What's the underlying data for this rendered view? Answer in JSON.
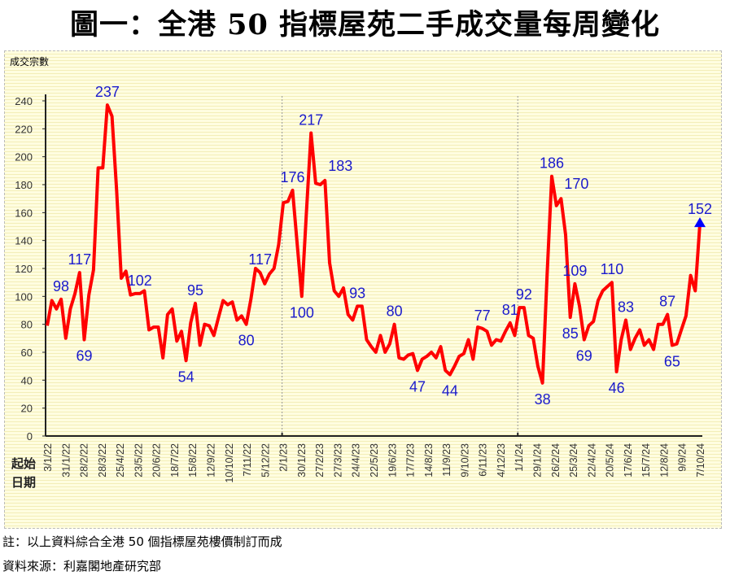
{
  "title": "圖一：全港 50 指標屋苑二手成交量每周變化",
  "notes": {
    "note1": "註：以上資料綜合全港 50 個指標屋苑樓價制訂而成",
    "note2": "資料來源：利嘉閣地產研究部"
  },
  "colors": {
    "line": "#ff0000",
    "label": "#1a1acc",
    "marker": "#0000ff"
  },
  "chart_data": {
    "type": "line",
    "title": "圖一：全港 50 指標屋苑二手成交量每周變化",
    "ylabel": "成交宗數",
    "xlabel": "起始日期",
    "xlabel_lines": [
      "起始",
      "日期"
    ],
    "ylim": [
      0,
      240
    ],
    "yticks": [
      0,
      20,
      40,
      60,
      80,
      100,
      120,
      140,
      160,
      180,
      200,
      220,
      240
    ],
    "grid": false,
    "xtick_labels": [
      "3/1/22",
      "31/1/22",
      "28/2/22",
      "28/3/22",
      "25/4/22",
      "23/5/22",
      "20/6/22",
      "18/7/22",
      "15/8/22",
      "12/9/22",
      "10/10/22",
      "7/11/22",
      "5/12/22",
      "2/1/23",
      "30/1/23",
      "27/2/23",
      "27/3/23",
      "24/4/23",
      "22/5/23",
      "19/6/23",
      "17/7/23",
      "14/8/23",
      "11/9/23",
      "9/10/23",
      "6/11/23",
      "4/12/23",
      "1/1/24",
      "29/1/24",
      "26/2/24",
      "25/3/24",
      "22/4/24",
      "20/5/24",
      "17/6/24",
      "15/7/24",
      "12/8/24",
      "9/9/24",
      "7/10/24"
    ],
    "year_separators": [
      "2/1/23",
      "1/1/24"
    ],
    "series": [
      {
        "name": "成交宗數",
        "values": [
          79,
          97,
          91,
          98,
          70,
          91,
          102,
          117,
          69,
          101,
          119,
          192,
          192,
          237,
          229,
          176,
          113,
          118,
          101,
          102,
          102,
          104,
          76,
          78,
          78,
          56,
          87,
          91,
          68,
          75,
          54,
          81,
          95,
          65,
          80,
          79,
          72,
          85,
          97,
          94,
          96,
          83,
          86,
          80,
          98,
          120,
          117,
          109,
          116,
          120,
          137,
          167,
          168,
          176,
          138,
          100,
          160,
          217,
          181,
          180,
          183,
          124,
          104,
          100,
          106,
          87,
          83,
          93,
          93,
          69,
          64,
          60,
          72,
          60,
          66,
          80,
          56,
          55,
          58,
          59,
          47,
          55,
          57,
          60,
          56,
          64,
          47,
          44,
          50,
          57,
          59,
          69,
          55,
          78,
          77,
          75,
          65,
          69,
          68,
          75,
          81,
          72,
          92,
          92,
          72,
          70,
          50,
          38,
          116,
          186,
          165,
          170,
          144,
          85,
          109,
          93,
          69,
          79,
          82,
          97,
          104,
          107,
          110,
          46,
          69,
          83,
          62,
          70,
          76,
          65,
          69,
          62,
          80,
          80,
          87,
          65,
          66,
          76,
          86,
          115,
          104,
          152
        ]
      }
    ],
    "annotations": [
      {
        "index": 3,
        "text": "98",
        "pos": "above"
      },
      {
        "index": 7,
        "text": "117",
        "pos": "above"
      },
      {
        "index": 8,
        "text": "69",
        "pos": "below"
      },
      {
        "index": 13,
        "text": "237",
        "pos": "above"
      },
      {
        "index": 20,
        "text": "102",
        "pos": "above"
      },
      {
        "index": 30,
        "text": "54",
        "pos": "below"
      },
      {
        "index": 32,
        "text": "95",
        "pos": "above"
      },
      {
        "index": 43,
        "text": "80",
        "pos": "below"
      },
      {
        "index": 46,
        "text": "117",
        "pos": "above"
      },
      {
        "index": 53,
        "text": "176",
        "pos": "above"
      },
      {
        "index": 55,
        "text": "100",
        "pos": "below"
      },
      {
        "index": 57,
        "text": "217",
        "pos": "above"
      },
      {
        "index": 60,
        "text": "183",
        "pos": "right"
      },
      {
        "index": 67,
        "text": "93",
        "pos": "above"
      },
      {
        "index": 75,
        "text": "80",
        "pos": "above"
      },
      {
        "index": 80,
        "text": "47",
        "pos": "below"
      },
      {
        "index": 87,
        "text": "44",
        "pos": "below"
      },
      {
        "index": 94,
        "text": "77",
        "pos": "above"
      },
      {
        "index": 100,
        "text": "81",
        "pos": "above"
      },
      {
        "index": 103,
        "text": "92",
        "pos": "above"
      },
      {
        "index": 107,
        "text": "38",
        "pos": "below"
      },
      {
        "index": 109,
        "text": "186",
        "pos": "above"
      },
      {
        "index": 111,
        "text": "170",
        "pos": "right"
      },
      {
        "index": 113,
        "text": "85",
        "pos": "below"
      },
      {
        "index": 114,
        "text": "109",
        "pos": "above"
      },
      {
        "index": 116,
        "text": "69",
        "pos": "below"
      },
      {
        "index": 122,
        "text": "110",
        "pos": "above"
      },
      {
        "index": 123,
        "text": "46",
        "pos": "below"
      },
      {
        "index": 125,
        "text": "83",
        "pos": "above"
      },
      {
        "index": 134,
        "text": "87",
        "pos": "above"
      },
      {
        "index": 135,
        "text": "65",
        "pos": "below"
      },
      {
        "index": 141,
        "text": "152",
        "pos": "above",
        "marker": "triangle"
      }
    ]
  }
}
